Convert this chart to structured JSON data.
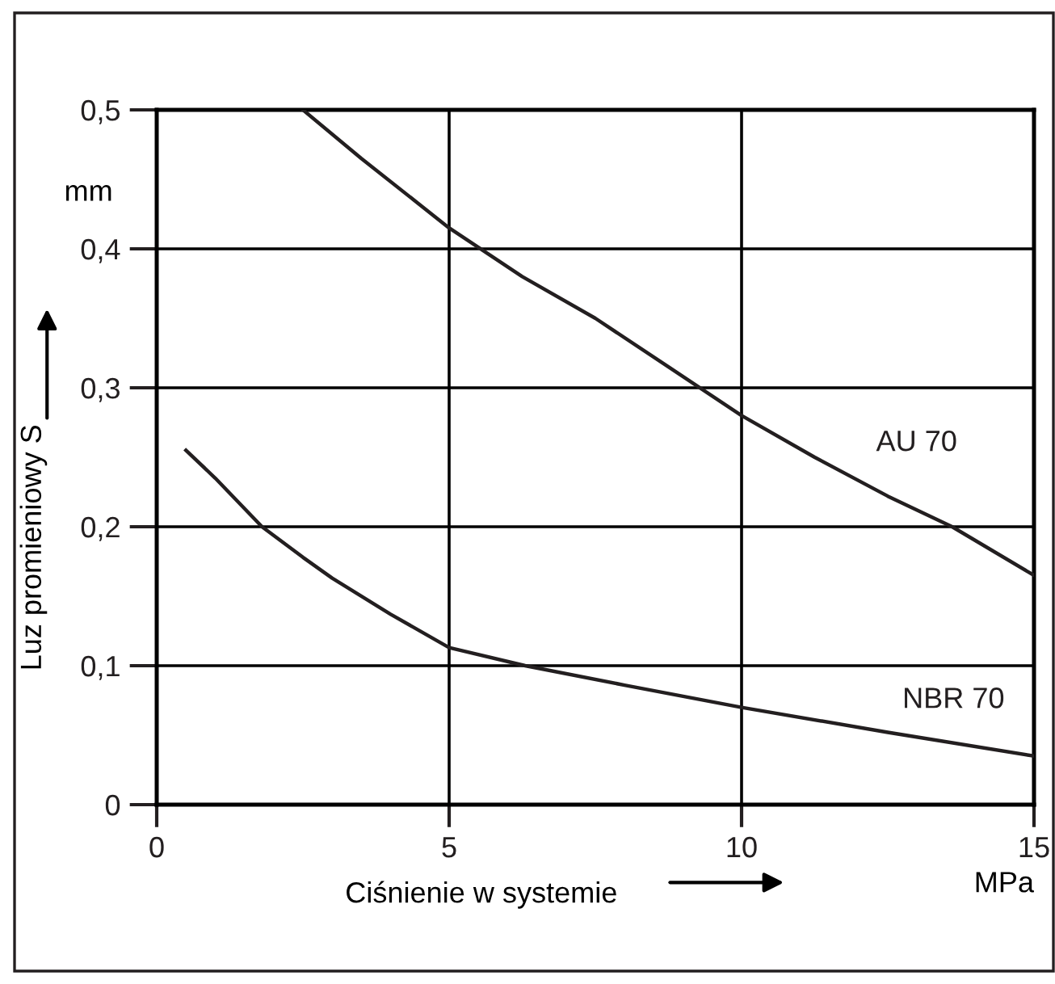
{
  "chart_data": {
    "type": "line",
    "xlabel": "Ciśnienie w systemie",
    "ylabel": "Luz promieniowy S",
    "xlim": [
      0,
      15
    ],
    "xticks": [
      0,
      5,
      10,
      15
    ],
    "ylim": [
      0,
      0.5
    ],
    "yticks": [
      {
        "value": 0,
        "label": "0"
      },
      {
        "value": 0.1,
        "label": "0,1"
      },
      {
        "value": 0.2,
        "label": "0,2"
      },
      {
        "value": 0.3,
        "label": "0,3"
      },
      {
        "value": 0.4,
        "label": "0,4"
      },
      {
        "value": 0.5,
        "label": "0,5"
      }
    ],
    "grid": true,
    "legend": false,
    "marker": "none",
    "line_style": "solid",
    "annotations": [
      "mm",
      "MPa"
    ],
    "series": [
      {
        "name": "AU 70",
        "color": "#231f20",
        "x": [
          2.5,
          3.5,
          5,
          6.25,
          7.5,
          8.75,
          10,
          11.25,
          12.5,
          13.6,
          15
        ],
        "values": [
          0.5,
          0.465,
          0.415,
          0.38,
          0.35,
          0.315,
          0.28,
          0.25,
          0.222,
          0.2,
          0.165
        ]
      },
      {
        "name": "NBR 70",
        "color": "#231f20",
        "x": [
          0.5,
          1,
          1.8,
          2.5,
          3,
          4,
          5,
          6.3,
          8,
          10,
          12.5,
          15
        ],
        "values": [
          0.255,
          0.235,
          0.2,
          0.178,
          0.163,
          0.137,
          0.113,
          0.1,
          0.086,
          0.07,
          0.052,
          0.035
        ]
      }
    ]
  }
}
